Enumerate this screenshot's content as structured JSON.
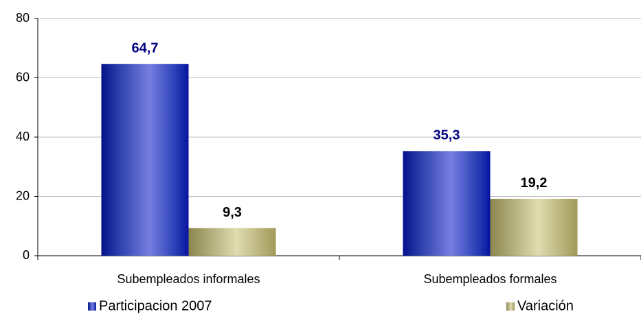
{
  "chart_data": {
    "type": "bar",
    "categories": [
      "Subempleados informales",
      "Subempleados formales"
    ],
    "series": [
      {
        "name": "Participacion 2007",
        "color": "#0a14c8",
        "label_color": "#000080",
        "values": [
          64.7,
          35.3
        ],
        "value_labels": [
          "64,7",
          "35,3"
        ]
      },
      {
        "name": "Variación",
        "color": "#c8c070",
        "label_color": "#000000",
        "values": [
          9.3,
          19.2
        ],
        "value_labels": [
          "9,3",
          "19,2"
        ]
      }
    ],
    "ylim": [
      0,
      80
    ],
    "yticks": [
      0,
      20,
      40,
      60,
      80
    ],
    "grid": true
  }
}
